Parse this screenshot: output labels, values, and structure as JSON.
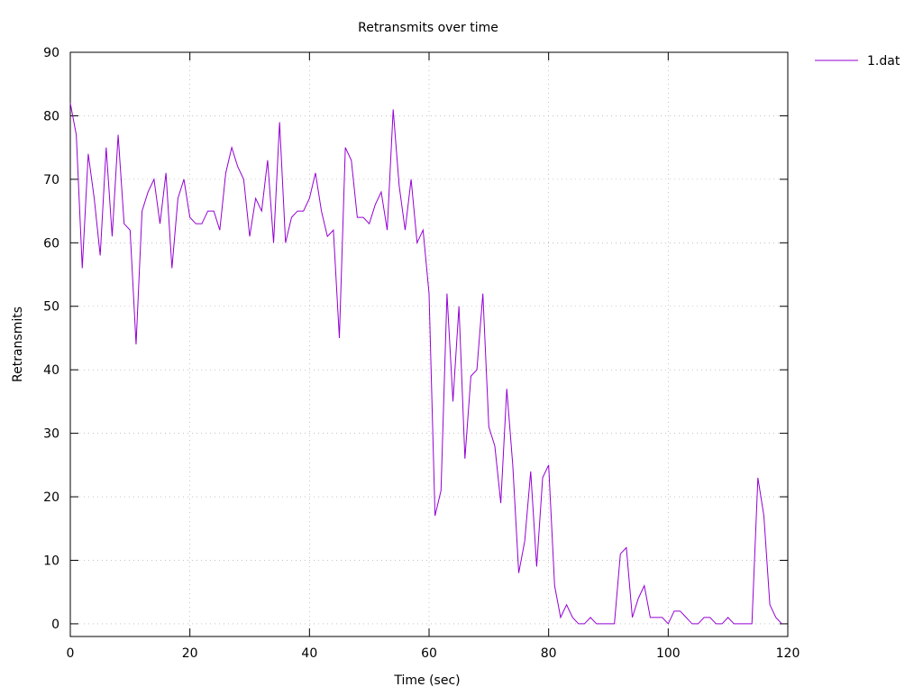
{
  "chart_data": {
    "type": "line",
    "title": "Retransmits over time",
    "xlabel": "Time (sec)",
    "ylabel": "Retransmits",
    "xlim": [
      0,
      120
    ],
    "ylim": [
      -2,
      90
    ],
    "xticks": [
      0,
      20,
      40,
      60,
      80,
      100,
      120
    ],
    "yticks": [
      0,
      10,
      20,
      30,
      40,
      50,
      60,
      70,
      80,
      90
    ],
    "grid": true,
    "legend_position": "top-right-outside",
    "series": [
      {
        "name": "1.dat",
        "color": "#9400d3",
        "x": [
          0,
          1,
          2,
          3,
          4,
          5,
          6,
          7,
          8,
          9,
          10,
          11,
          12,
          13,
          14,
          15,
          16,
          17,
          18,
          19,
          20,
          21,
          22,
          23,
          24,
          25,
          26,
          27,
          28,
          29,
          30,
          31,
          32,
          33,
          34,
          35,
          36,
          37,
          38,
          39,
          40,
          41,
          42,
          43,
          44,
          45,
          46,
          47,
          48,
          49,
          50,
          51,
          52,
          53,
          54,
          55,
          56,
          57,
          58,
          59,
          60,
          61,
          62,
          63,
          64,
          65,
          66,
          67,
          68,
          69,
          70,
          71,
          72,
          73,
          74,
          75,
          76,
          77,
          78,
          79,
          80,
          81,
          82,
          83,
          84,
          85,
          86,
          87,
          88,
          89,
          90,
          91,
          92,
          93,
          94,
          95,
          96,
          97,
          98,
          99,
          100,
          101,
          102,
          103,
          104,
          105,
          106,
          107,
          108,
          109,
          110,
          111,
          112,
          113,
          114,
          115,
          116,
          117,
          118,
          119
        ],
        "y": [
          82,
          77,
          56,
          74,
          67,
          58,
          75,
          61,
          77,
          63,
          62,
          44,
          65,
          68,
          70,
          63,
          71,
          56,
          67,
          70,
          64,
          63,
          63,
          65,
          65,
          62,
          71,
          75,
          72,
          70,
          61,
          67,
          65,
          73,
          60,
          79,
          60,
          64,
          65,
          65,
          67,
          71,
          65,
          61,
          62,
          45,
          75,
          73,
          64,
          64,
          63,
          66,
          68,
          62,
          81,
          69,
          62,
          70,
          60,
          62,
          52,
          17,
          21,
          52,
          35,
          50,
          26,
          39,
          40,
          52,
          31,
          28,
          19,
          37,
          25,
          8,
          13,
          24,
          9,
          23,
          25,
          6,
          1,
          3,
          1,
          0,
          0,
          1,
          0,
          0,
          0,
          0,
          11,
          12,
          1,
          4,
          6,
          1,
          1,
          1,
          0,
          2,
          2,
          1,
          0,
          0,
          1,
          1,
          0,
          0,
          1,
          0,
          0,
          0,
          0,
          23,
          17,
          3,
          1,
          0
        ]
      }
    ]
  }
}
